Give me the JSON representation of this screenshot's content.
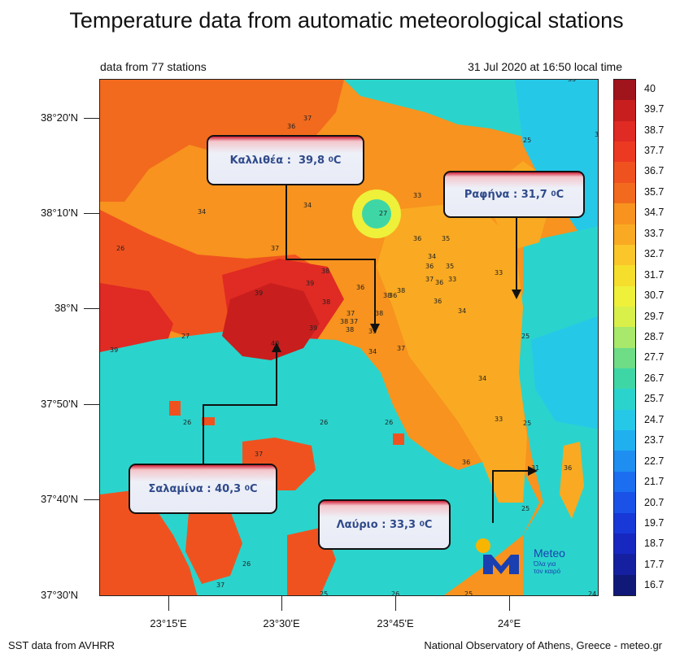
{
  "title": "Temperature data from automatic meteorological stations",
  "subtitle_left": "data from 77 stations",
  "subtitle_right": "31 Jul 2020 at 16:50 local time",
  "footer_left": "SST data from AVHRR",
  "footer_right": "National Observatory of Athens, Greece - meteo.gr",
  "lat_labels": [
    "38°20'N",
    "38°10'N",
    "38°N",
    "37°50'N",
    "37°40'N",
    "37°30'N"
  ],
  "lon_labels": [
    "23°15'E",
    "23°30'E",
    "23°45'E",
    "24°E"
  ],
  "callouts": {
    "kallithea": {
      "name": "Καλλιθέα :",
      "value": "39,8",
      "unit": "C"
    },
    "rafina": {
      "name": "Ραφήνα :",
      "value": "31,7",
      "unit": "C"
    },
    "salamina": {
      "name": "Σαλαμίνα :",
      "value": "40,3",
      "unit": "C"
    },
    "lavrio": {
      "name": "Λαύριο :",
      "value": "33,3",
      "unit": "C"
    }
  },
  "degree_symbol": "0",
  "legend": {
    "labels": [
      "40",
      "39.7",
      "38.7",
      "37.7",
      "36.7",
      "35.7",
      "34.7",
      "33.7",
      "32.7",
      "31.7",
      "30.7",
      "29.7",
      "28.7",
      "27.7",
      "26.7",
      "25.7",
      "24.7",
      "23.7",
      "22.7",
      "21.7",
      "20.7",
      "19.7",
      "18.7",
      "17.7",
      "16.7"
    ],
    "colors": [
      "#a0141c",
      "#c81e1e",
      "#e02a24",
      "#ec3a22",
      "#f0521f",
      "#f26a1e",
      "#f7931e",
      "#f9aa22",
      "#fbc62a",
      "#f6de2c",
      "#eef03a",
      "#d9f04a",
      "#a8e86a",
      "#6fdc86",
      "#3fd6a6",
      "#2ad4cc",
      "#26c8e8",
      "#20b0f0",
      "#1e8ef0",
      "#1c6ef0",
      "#1a52e8",
      "#1838d8",
      "#1628c0",
      "#1420a0",
      "#101878"
    ]
  },
  "logo": {
    "name": "Meteo",
    "tagline_1": "Όλα για",
    "tagline_2": "τον καιρό",
    "accent": "#f7b500",
    "brand": "#1a3fb0"
  },
  "station_values": [
    {
      "v": "35"
    },
    {
      "v": "37"
    },
    {
      "v": "36"
    },
    {
      "v": "37"
    },
    {
      "v": "31"
    },
    {
      "v": "34"
    },
    {
      "v": "34"
    },
    {
      "v": "33"
    },
    {
      "v": "27"
    },
    {
      "v": "25"
    },
    {
      "v": "26"
    },
    {
      "v": "36"
    },
    {
      "v": "35"
    },
    {
      "v": "38"
    },
    {
      "v": "36"
    },
    {
      "v": "34"
    },
    {
      "v": "36"
    },
    {
      "v": "35"
    },
    {
      "v": "39"
    },
    {
      "v": "39"
    },
    {
      "v": "38"
    },
    {
      "v": "36"
    },
    {
      "v": "38"
    },
    {
      "v": "38"
    },
    {
      "v": "37"
    },
    {
      "v": "36"
    },
    {
      "v": "33"
    },
    {
      "v": "33"
    },
    {
      "v": "27"
    },
    {
      "v": "39"
    },
    {
      "v": "39"
    },
    {
      "v": "38"
    },
    {
      "v": "37"
    },
    {
      "v": "38"
    },
    {
      "v": "37"
    },
    {
      "v": "36"
    },
    {
      "v": "34"
    },
    {
      "v": "25"
    },
    {
      "v": "39"
    },
    {
      "v": "40"
    },
    {
      "v": "38"
    },
    {
      "v": "34"
    },
    {
      "v": "37"
    },
    {
      "v": "34"
    },
    {
      "v": "26"
    },
    {
      "v": "26"
    },
    {
      "v": "26"
    },
    {
      "v": "33"
    },
    {
      "v": "25"
    },
    {
      "v": "37"
    },
    {
      "v": "36"
    },
    {
      "v": "31"
    },
    {
      "v": "25"
    },
    {
      "v": "37"
    },
    {
      "v": "26"
    },
    {
      "v": "25"
    },
    {
      "v": "26"
    },
    {
      "v": "25"
    },
    {
      "v": "24"
    },
    {
      "v": "36"
    }
  ]
}
